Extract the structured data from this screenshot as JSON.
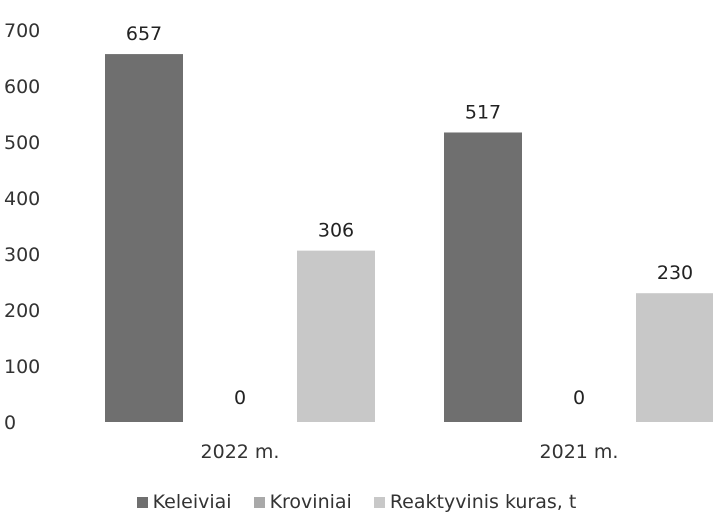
{
  "chart_data": {
    "type": "bar",
    "categories": [
      "2022 m.",
      "2021 m."
    ],
    "series": [
      {
        "name": "Keleiviai",
        "values": [
          657,
          517
        ],
        "color": "#6f6f6f"
      },
      {
        "name": "Kroviniai",
        "values": [
          0,
          0
        ],
        "color": "#a9a9a9"
      },
      {
        "name": "Reaktyvinis kuras, t",
        "values": [
          306,
          230
        ],
        "color": "#c8c8c8"
      }
    ],
    "ylim": [
      0,
      700
    ],
    "yticks": [
      0,
      100,
      200,
      300,
      400,
      500,
      600,
      700
    ],
    "data_labels": [
      [
        "657",
        "0",
        "306"
      ],
      [
        "517",
        "0",
        "230"
      ]
    ],
    "grid": false,
    "legend": "bottom-center"
  }
}
